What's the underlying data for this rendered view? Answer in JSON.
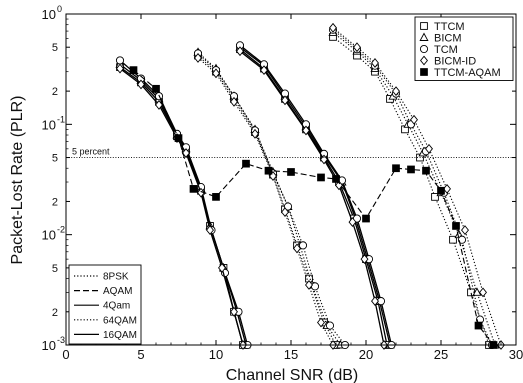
{
  "chart_data": {
    "type": "line",
    "title": "",
    "xlabel": "Channel SNR (dB)",
    "ylabel": "Packet-Lost Rate (PLR)",
    "xlim": [
      0,
      30
    ],
    "ylim": [
      0.001,
      1
    ],
    "yscale": "log",
    "x_ticks": [
      0,
      5,
      10,
      15,
      20,
      25,
      30
    ],
    "y_ticks": [
      {
        "label_mantissa": "10",
        "label_exponent": "0",
        "value": 1
      },
      {
        "label": "5",
        "value": 0.5
      },
      {
        "label": "2",
        "value": 0.2
      },
      {
        "label_mantissa": "10",
        "label_exponent": "-1",
        "value": 0.1
      },
      {
        "label": "5",
        "value": 0.05
      },
      {
        "label": "2",
        "value": 0.02
      },
      {
        "label_mantissa": "10",
        "label_exponent": "-2",
        "value": 0.01
      },
      {
        "label": "5",
        "value": 0.005
      },
      {
        "label": "2",
        "value": 0.002
      },
      {
        "label_mantissa": "10",
        "label_exponent": "-3",
        "value": 0.001
      }
    ],
    "threshold": {
      "label": "5 percent",
      "value": 0.05
    },
    "marker_legend": {
      "position": "top-right",
      "entries": [
        {
          "name": "TTCM",
          "marker": "square"
        },
        {
          "name": "BICM",
          "marker": "triangle"
        },
        {
          "name": "TCM",
          "marker": "circle"
        },
        {
          "name": "BICM-ID",
          "marker": "diamond"
        },
        {
          "name": "TTCM-AQAM",
          "marker": "filled-square"
        }
      ]
    },
    "line_legend": {
      "position": "bottom-left",
      "entries": [
        {
          "name": "8PSK",
          "dash": "dotted"
        },
        {
          "name": "AQAM",
          "dash": "dashed"
        },
        {
          "name": "4Qam",
          "dash": "solid"
        },
        {
          "name": "64QAM",
          "dash": "dotted"
        },
        {
          "name": "16QAM",
          "dash": "solid"
        }
      ]
    },
    "groups": [
      {
        "modulation": "4Qam",
        "dash": "solid",
        "curves": [
          {
            "scheme": "TTCM",
            "marker": "square",
            "points": [
              [
                3.6,
                0.33
              ],
              [
                5,
                0.24
              ],
              [
                6.2,
                0.16
              ],
              [
                7.4,
                0.078
              ],
              [
                8,
                0.058
              ],
              [
                9,
                0.025
              ],
              [
                9.6,
                0.012
              ],
              [
                10.5,
                0.005
              ],
              [
                11.2,
                0.002
              ],
              [
                11.8,
                0.001
              ]
            ]
          },
          {
            "scheme": "BICM",
            "marker": "triangle",
            "points": [
              [
                3.6,
                0.35
              ],
              [
                5,
                0.25
              ],
              [
                6.2,
                0.17
              ],
              [
                7.4,
                0.08
              ],
              [
                8,
                0.06
              ],
              [
                9,
                0.026
              ],
              [
                9.6,
                0.012
              ],
              [
                10.5,
                0.005
              ],
              [
                11.4,
                0.002
              ],
              [
                12,
                0.001
              ]
            ]
          },
          {
            "scheme": "TCM",
            "marker": "circle",
            "points": [
              [
                3.6,
                0.38
              ],
              [
                5,
                0.26
              ],
              [
                6.2,
                0.18
              ],
              [
                7.4,
                0.082
              ],
              [
                8,
                0.062
              ],
              [
                9,
                0.027
              ],
              [
                9.7,
                0.011
              ],
              [
                10.6,
                0.0045
              ],
              [
                11.5,
                0.002
              ],
              [
                12.1,
                0.001
              ]
            ]
          },
          {
            "scheme": "BICM-ID",
            "marker": "diamond",
            "points": [
              [
                3.6,
                0.32
              ],
              [
                5,
                0.23
              ],
              [
                6.2,
                0.15
              ],
              [
                7.4,
                0.075
              ],
              [
                8,
                0.055
              ],
              [
                9,
                0.024
              ],
              [
                9.6,
                0.011
              ],
              [
                10.4,
                0.005
              ],
              [
                11.2,
                0.002
              ],
              [
                11.8,
                0.001
              ]
            ]
          }
        ]
      },
      {
        "modulation": "8PSK",
        "dash": "dotted",
        "curves": [
          {
            "scheme": "TTCM",
            "marker": "square",
            "points": [
              [
                8.8,
                0.42
              ],
              [
                10,
                0.3
              ],
              [
                11.2,
                0.17
              ],
              [
                12.6,
                0.085
              ],
              [
                13.8,
                0.035
              ],
              [
                14.6,
                0.017
              ],
              [
                15.4,
                0.008
              ],
              [
                16.2,
                0.004
              ],
              [
                17.2,
                0.0016
              ],
              [
                18,
                0.001
              ]
            ]
          },
          {
            "scheme": "BICM",
            "marker": "triangle",
            "points": [
              [
                8.8,
                0.45
              ],
              [
                10,
                0.32
              ],
              [
                11.2,
                0.18
              ],
              [
                12.6,
                0.09
              ],
              [
                13.8,
                0.037
              ],
              [
                14.8,
                0.018
              ],
              [
                15.6,
                0.008
              ],
              [
                16.4,
                0.0035
              ],
              [
                17.4,
                0.0015
              ],
              [
                18.3,
                0.001
              ]
            ]
          },
          {
            "scheme": "TCM",
            "marker": "circle",
            "points": [
              [
                8.8,
                0.44
              ],
              [
                10,
                0.31
              ],
              [
                11.2,
                0.18
              ],
              [
                12.6,
                0.088
              ],
              [
                13.8,
                0.036
              ],
              [
                14.8,
                0.018
              ],
              [
                15.8,
                0.008
              ],
              [
                16.6,
                0.0034
              ],
              [
                17.6,
                0.0015
              ],
              [
                18.6,
                0.001
              ]
            ]
          },
          {
            "scheme": "BICM-ID",
            "marker": "diamond",
            "points": [
              [
                8.8,
                0.4
              ],
              [
                10,
                0.29
              ],
              [
                11.2,
                0.16
              ],
              [
                12.6,
                0.082
              ],
              [
                13.8,
                0.034
              ],
              [
                14.6,
                0.016
              ],
              [
                15.4,
                0.0075
              ],
              [
                16.2,
                0.0035
              ],
              [
                17,
                0.0016
              ],
              [
                17.8,
                0.001
              ]
            ]
          }
        ]
      },
      {
        "modulation": "16QAM",
        "dash": "solid",
        "curves": [
          {
            "scheme": "TTCM",
            "marker": "square",
            "points": [
              [
                11.6,
                0.48
              ],
              [
                13.2,
                0.32
              ],
              [
                14.6,
                0.17
              ],
              [
                16,
                0.09
              ],
              [
                17.2,
                0.05
              ],
              [
                18.2,
                0.03
              ],
              [
                19.2,
                0.014
              ],
              [
                20,
                0.006
              ],
              [
                20.8,
                0.0025
              ],
              [
                21.4,
                0.001
              ]
            ]
          },
          {
            "scheme": "BICM",
            "marker": "triangle",
            "points": [
              [
                11.6,
                0.5
              ],
              [
                13.2,
                0.34
              ],
              [
                14.6,
                0.18
              ],
              [
                16,
                0.095
              ],
              [
                17.2,
                0.052
              ],
              [
                18.4,
                0.03
              ],
              [
                19.3,
                0.014
              ],
              [
                20.1,
                0.006
              ],
              [
                20.9,
                0.0025
              ],
              [
                21.6,
                0.001
              ]
            ]
          },
          {
            "scheme": "TCM",
            "marker": "circle",
            "points": [
              [
                11.6,
                0.52
              ],
              [
                13.2,
                0.35
              ],
              [
                14.6,
                0.19
              ],
              [
                16,
                0.1
              ],
              [
                17.2,
                0.054
              ],
              [
                18.4,
                0.031
              ],
              [
                19.4,
                0.014
              ],
              [
                20.2,
                0.006
              ],
              [
                21,
                0.0025
              ],
              [
                21.7,
                0.001
              ]
            ]
          },
          {
            "scheme": "BICM-ID",
            "marker": "diamond",
            "points": [
              [
                11.6,
                0.46
              ],
              [
                13.2,
                0.31
              ],
              [
                14.6,
                0.165
              ],
              [
                16,
                0.088
              ],
              [
                17.2,
                0.048
              ],
              [
                18.2,
                0.028
              ],
              [
                19.1,
                0.013
              ],
              [
                19.9,
                0.006
              ],
              [
                20.6,
                0.0025
              ],
              [
                21.2,
                0.001
              ]
            ]
          }
        ]
      },
      {
        "modulation": "64QAM",
        "dash": "dotted",
        "curves": [
          {
            "scheme": "TTCM",
            "marker": "square",
            "points": [
              [
                17.8,
                0.62
              ],
              [
                19.4,
                0.42
              ],
              [
                20.6,
                0.3
              ],
              [
                21.6,
                0.17
              ],
              [
                22.6,
                0.09
              ],
              [
                23.6,
                0.05
              ],
              [
                24.6,
                0.022
              ],
              [
                25.8,
                0.009
              ],
              [
                27,
                0.003
              ],
              [
                28.2,
                0.001
              ]
            ]
          },
          {
            "scheme": "BICM",
            "marker": "triangle",
            "points": [
              [
                17.8,
                0.68
              ],
              [
                19.4,
                0.46
              ],
              [
                20.6,
                0.32
              ],
              [
                21.8,
                0.18
              ],
              [
                22.8,
                0.1
              ],
              [
                23.8,
                0.055
              ],
              [
                25,
                0.024
              ],
              [
                26.2,
                0.01
              ],
              [
                27.4,
                0.003
              ],
              [
                28.6,
                0.001
              ]
            ]
          },
          {
            "scheme": "TCM",
            "marker": "circle",
            "points": [
              [
                17.8,
                0.72
              ],
              [
                19.4,
                0.48
              ],
              [
                20.6,
                0.34
              ],
              [
                22,
                0.19
              ],
              [
                23,
                0.1
              ],
              [
                24,
                0.057
              ],
              [
                25.2,
                0.024
              ],
              [
                26.4,
                0.009
              ],
              [
                27.6,
                0.0017
              ],
              [
                28.4,
                0.001
              ]
            ]
          },
          {
            "scheme": "BICM-ID",
            "marker": "diamond",
            "points": [
              [
                17.8,
                0.75
              ],
              [
                19.4,
                0.5
              ],
              [
                20.6,
                0.36
              ],
              [
                22,
                0.2
              ],
              [
                23.2,
                0.11
              ],
              [
                24.2,
                0.06
              ],
              [
                25.4,
                0.026
              ],
              [
                26.6,
                0.011
              ],
              [
                27.8,
                0.003
              ],
              [
                29,
                0.001
              ]
            ]
          }
        ]
      },
      {
        "modulation": "AQAM",
        "dash": "dashed",
        "curves": [
          {
            "scheme": "TTCM-AQAM",
            "marker": "filled-square",
            "points": [
              [
                4.5,
                0.31
              ],
              [
                6,
                0.21
              ],
              [
                7.5,
                0.075
              ],
              [
                8.5,
                0.026
              ],
              [
                10,
                0.022
              ],
              [
                12,
                0.044
              ],
              [
                13.5,
                0.038
              ],
              [
                15,
                0.037
              ],
              [
                17,
                0.033
              ],
              [
                18,
                0.032
              ],
              [
                20,
                0.014
              ],
              [
                22,
                0.04
              ],
              [
                23,
                0.039
              ],
              [
                24,
                0.038
              ],
              [
                25,
                0.025
              ],
              [
                26,
                0.012
              ],
              [
                27.5,
                0.0015
              ],
              [
                28.5,
                0.001
              ]
            ]
          }
        ]
      }
    ]
  }
}
